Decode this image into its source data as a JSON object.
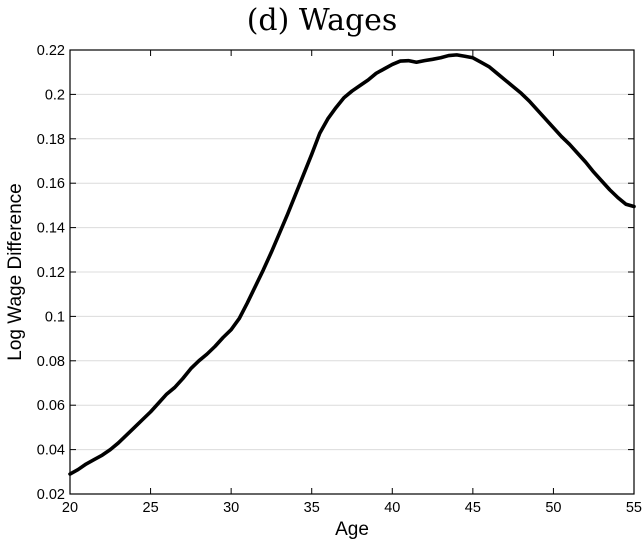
{
  "chart_data": {
    "type": "line",
    "title": "(d) Wages",
    "xlabel": "Age",
    "ylabel": "Log Wage Difference",
    "xlim": [
      20,
      55
    ],
    "ylim": [
      0.02,
      0.22
    ],
    "xticks": [
      20,
      25,
      30,
      35,
      40,
      45,
      50,
      55
    ],
    "yticks": [
      0.02,
      0.04,
      0.06,
      0.08,
      0.1,
      0.12,
      0.14,
      0.16,
      0.18,
      0.2,
      0.22
    ],
    "ytick_labels": [
      "0.02",
      "0.04",
      "0.06",
      "0.08",
      "0.1",
      "0.12",
      "0.14",
      "0.16",
      "0.18",
      "0.2",
      "0.22"
    ],
    "grid": "horizontal",
    "series": [
      {
        "color": "#000000",
        "x": [
          20,
          20.5,
          21,
          21.5,
          22,
          22.5,
          23,
          23.5,
          24,
          24.5,
          25,
          25.5,
          26,
          26.5,
          27,
          27.5,
          28,
          28.5,
          29,
          29.5,
          30,
          30.5,
          31,
          31.5,
          32,
          32.5,
          33,
          33.5,
          34,
          34.5,
          35,
          35.5,
          36,
          36.5,
          37,
          37.5,
          38,
          38.5,
          39,
          39.5,
          40,
          40.5,
          41,
          41.5,
          42,
          42.5,
          43,
          43.5,
          44,
          44.5,
          45,
          45.5,
          46,
          46.5,
          47,
          47.5,
          48,
          48.5,
          49,
          49.5,
          50,
          50.5,
          51,
          51.5,
          52,
          52.5,
          53,
          53.5,
          54,
          54.5,
          55
        ],
        "y": [
          0.029,
          0.031,
          0.0335,
          0.0355,
          0.0375,
          0.04,
          0.043,
          0.0465,
          0.05,
          0.0535,
          0.057,
          0.061,
          0.065,
          0.068,
          0.072,
          0.0765,
          0.08,
          0.083,
          0.0865,
          0.0905,
          0.094,
          0.099,
          0.106,
          0.1135,
          0.121,
          0.129,
          0.1375,
          0.146,
          0.155,
          0.164,
          0.173,
          0.1825,
          0.189,
          0.194,
          0.1985,
          0.2015,
          0.204,
          0.2065,
          0.2095,
          0.2115,
          0.2135,
          0.215,
          0.2152,
          0.2145,
          0.2152,
          0.2158,
          0.2165,
          0.2175,
          0.2178,
          0.2172,
          0.2165,
          0.2145,
          0.2125,
          0.2095,
          0.2065,
          0.2035,
          0.2005,
          0.197,
          0.193,
          0.189,
          0.185,
          0.181,
          0.1775,
          0.1735,
          0.1695,
          0.165,
          0.161,
          0.157,
          0.1535,
          0.1505,
          0.1495
        ]
      }
    ]
  }
}
